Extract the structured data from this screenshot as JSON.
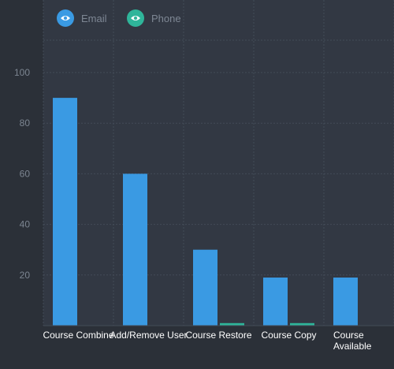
{
  "colors": {
    "background": "#2b3038",
    "plot_background": "#323843",
    "grid": "#434b57",
    "email": "#3a9ae3",
    "phone": "#2fb59a",
    "icon_eye": "#ffffff"
  },
  "legend": {
    "items": [
      {
        "label": "Email",
        "icon": "eye-icon"
      },
      {
        "label": "Phone",
        "icon": "eye-icon"
      }
    ]
  },
  "chart_data": {
    "type": "bar",
    "categories": [
      "Course Combine",
      "Add/Remove User",
      "Course Restore",
      "Course Copy",
      "Course Available"
    ],
    "series": [
      {
        "name": "Email",
        "values": [
          90,
          60,
          30,
          19,
          19
        ]
      },
      {
        "name": "Phone",
        "values": [
          0,
          0,
          1,
          1,
          0
        ]
      }
    ],
    "yticks": [
      20,
      40,
      60,
      80,
      100
    ],
    "ylim": [
      0,
      112
    ],
    "grid": true,
    "legend_position": "top-left",
    "title": "",
    "xlabel": "",
    "ylabel": ""
  }
}
